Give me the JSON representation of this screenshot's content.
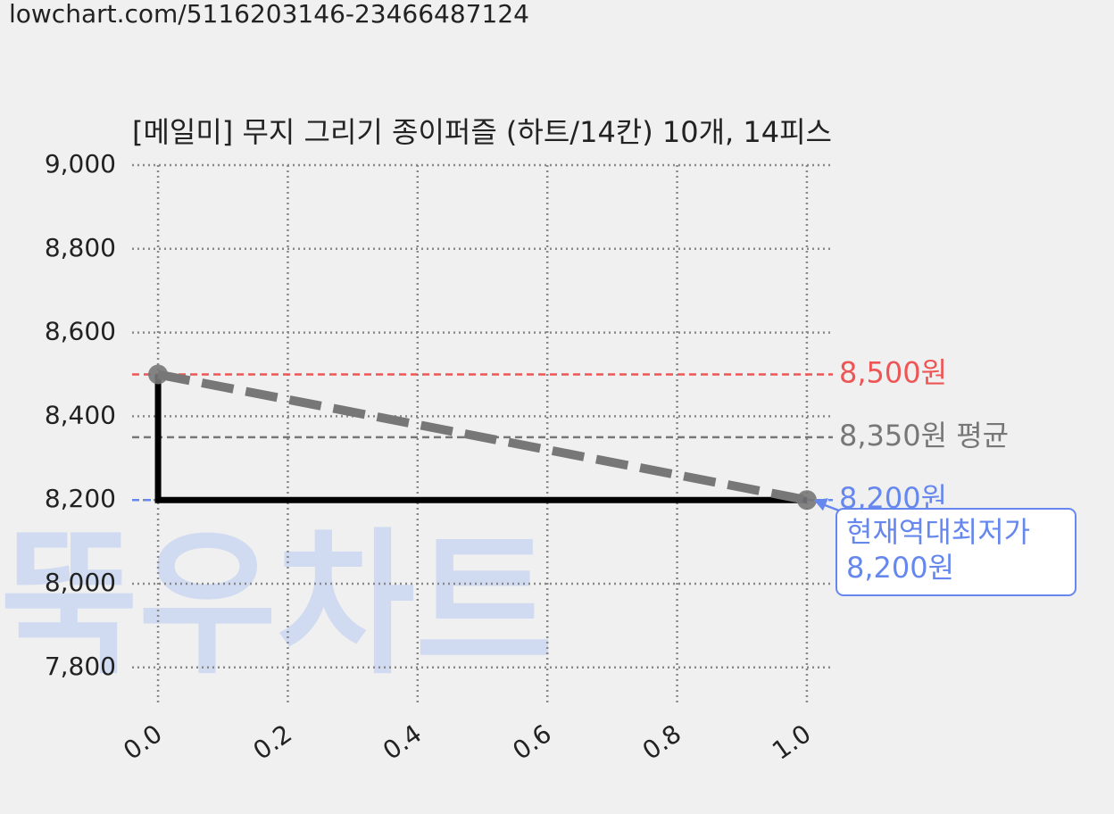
{
  "source_url": "lowchart.com/5116203146-23466487124",
  "watermark": "뚝우차트",
  "chart_data": {
    "type": "line",
    "title": "[메일미] 무지 그리기 종이퍼즐 (하트/14칸) 10개, 14피스",
    "xlim": [
      -0.04,
      1.04
    ],
    "xticks": [
      {
        "value": 0,
        "label": "0.0"
      },
      0.2,
      0.4,
      0.6,
      0.8,
      {
        "value": 1,
        "label": "1.0"
      }
    ],
    "ylim": [
      7710,
      9000
    ],
    "yticks": [
      {
        "value": 7800,
        "label": "7,800"
      },
      {
        "value": 8000,
        "label": "8,000"
      },
      {
        "value": 8200,
        "label": "8,200"
      },
      {
        "value": 8400,
        "label": "8,400"
      },
      {
        "value": 8600,
        "label": "8,600"
      },
      {
        "value": 8800,
        "label": "8,800"
      },
      {
        "value": 9000,
        "label": "9,000"
      }
    ],
    "grid": true,
    "series": [
      {
        "color": "#000000",
        "style": "solid",
        "x": [
          0,
          0,
          1
        ],
        "values": [
          8500,
          8200,
          8200
        ]
      },
      {
        "color": "#777777",
        "style": "dashed",
        "markers": true,
        "x": [
          0,
          1
        ],
        "values": [
          8500,
          8200
        ]
      }
    ],
    "hlines": [
      {
        "value": 8500,
        "label": "8,500원",
        "color": "#ee5555"
      },
      {
        "value": 8350,
        "label": "8,350원 평균",
        "color": "#777777"
      },
      {
        "value": 8200,
        "label": "8,200원",
        "color": "#6688ee"
      }
    ],
    "annotation": {
      "lines": [
        "현재역대최저가",
        "8,200원"
      ],
      "x": 1,
      "value": 8200,
      "color": "#6688ee"
    }
  }
}
